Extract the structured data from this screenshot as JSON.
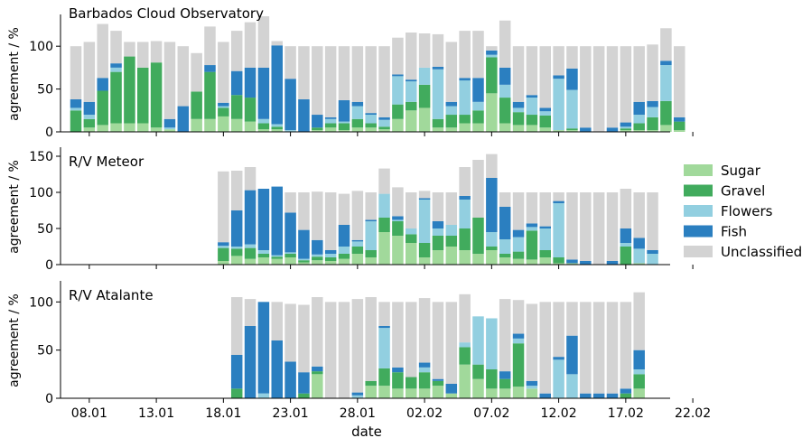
{
  "figure": {
    "xlabel": "date",
    "x_ticks": [
      "08.01",
      "13.01",
      "18.01",
      "23.01",
      "28.01",
      "02.02",
      "07.02",
      "12.02",
      "17.02",
      "22.02"
    ],
    "legend": [
      {
        "label": "Sugar",
        "color": "#a1d99b"
      },
      {
        "label": "Gravel",
        "color": "#41ab5d"
      },
      {
        "label": "Flowers",
        "color": "#92cfe0"
      },
      {
        "label": "Fish",
        "color": "#2b7fc0"
      },
      {
        "label": "Unclassified",
        "color": "#d3d3d3"
      }
    ]
  },
  "chart_data": [
    {
      "type": "bar",
      "stacked": true,
      "title": "Barbados Cloud Observatory",
      "ylabel": "agreement / %",
      "ylim": [
        0,
        135
      ],
      "y_ticks": [
        "0",
        "50",
        "100"
      ],
      "x": [
        "07.01",
        "08.01",
        "09.01",
        "10.01",
        "11.01",
        "12.01",
        "13.01",
        "14.01",
        "15.01",
        "16.01",
        "17.01",
        "18.01",
        "19.01",
        "20.01",
        "21.01",
        "22.01",
        "23.01",
        "24.01",
        "25.01",
        "26.01",
        "27.01",
        "28.01",
        "29.01",
        "30.01",
        "31.01",
        "01.02",
        "02.02",
        "03.02",
        "04.02",
        "05.02",
        "06.02",
        "07.02",
        "08.02",
        "09.02",
        "10.02",
        "11.02",
        "12.02",
        "13.02",
        "14.02",
        "15.02",
        "16.02",
        "17.02",
        "18.02",
        "19.02",
        "20.02",
        "21.02"
      ],
      "series": [
        {
          "name": "Sugar",
          "values": [
            0,
            5,
            8,
            10,
            10,
            10,
            5,
            3,
            0,
            15,
            15,
            18,
            15,
            12,
            3,
            3,
            0,
            0,
            2,
            5,
            2,
            5,
            5,
            3,
            15,
            25,
            28,
            5,
            5,
            10,
            10,
            45,
            10,
            8,
            8,
            5,
            2,
            2,
            0,
            0,
            0,
            2,
            2,
            2,
            8,
            2
          ]
        },
        {
          "name": "Gravel",
          "values": [
            25,
            10,
            40,
            60,
            78,
            65,
            76,
            0,
            0,
            32,
            55,
            10,
            28,
            28,
            7,
            3,
            0,
            0,
            3,
            5,
            8,
            10,
            5,
            3,
            17,
            10,
            27,
            10,
            15,
            10,
            15,
            42,
            30,
            15,
            12,
            14,
            0,
            2,
            0,
            0,
            0,
            2,
            8,
            15,
            28,
            10
          ]
        },
        {
          "name": "Flowers",
          "values": [
            3,
            5,
            0,
            5,
            0,
            0,
            0,
            2,
            0,
            0,
            0,
            2,
            0,
            0,
            5,
            3,
            2,
            0,
            0,
            5,
            2,
            15,
            10,
            8,
            33,
            24,
            20,
            58,
            10,
            40,
            10,
            3,
            15,
            5,
            20,
            5,
            60,
            45,
            0,
            0,
            0,
            2,
            10,
            12,
            42,
            0
          ]
        },
        {
          "name": "Fish",
          "values": [
            10,
            15,
            15,
            5,
            0,
            0,
            0,
            10,
            30,
            0,
            8,
            4,
            28,
            35,
            60,
            92,
            60,
            38,
            15,
            2,
            25,
            5,
            2,
            3,
            2,
            2,
            0,
            3,
            5,
            3,
            28,
            5,
            20,
            7,
            3,
            4,
            4,
            25,
            5,
            0,
            5,
            5,
            15,
            7,
            5,
            5
          ]
        },
        {
          "name": "Unclassified",
          "values": [
            62,
            70,
            63,
            38,
            17,
            30,
            25,
            90,
            70,
            45,
            45,
            71,
            47,
            53,
            60,
            5,
            38,
            62,
            80,
            83,
            63,
            65,
            78,
            83,
            43,
            55,
            40,
            38,
            70,
            55,
            55,
            5,
            55,
            65,
            57,
            72,
            34,
            26,
            95,
            100,
            95,
            89,
            65,
            66,
            38,
            83
          ]
        }
      ]
    },
    {
      "type": "bar",
      "stacked": true,
      "title": "R/V Meteor",
      "ylabel": "agreement / %",
      "ylim": [
        0,
        160
      ],
      "y_ticks": [
        "0",
        "50",
        "100",
        "150"
      ],
      "x": [
        "18.01",
        "19.01",
        "20.01",
        "21.01",
        "22.01",
        "23.01",
        "24.01",
        "25.01",
        "26.01",
        "27.01",
        "28.01",
        "29.01",
        "30.01",
        "31.01",
        "01.02",
        "02.02",
        "03.02",
        "04.02",
        "05.02",
        "06.02",
        "07.02",
        "08.02",
        "09.02",
        "10.02",
        "11.02",
        "12.02",
        "13.02",
        "14.02",
        "15.02",
        "16.02",
        "17.02",
        "18.02",
        "19.02"
      ],
      "series": [
        {
          "name": "Sugar",
          "values": [
            5,
            12,
            8,
            10,
            8,
            10,
            3,
            6,
            5,
            8,
            15,
            10,
            45,
            40,
            30,
            10,
            20,
            25,
            20,
            15,
            20,
            10,
            8,
            7,
            10,
            2,
            2,
            0,
            0,
            0,
            0,
            2,
            0
          ]
        },
        {
          "name": "Gravel",
          "values": [
            18,
            10,
            15,
            5,
            3,
            5,
            3,
            5,
            5,
            7,
            10,
            10,
            20,
            20,
            12,
            20,
            20,
            15,
            30,
            50,
            5,
            5,
            10,
            40,
            10,
            8,
            0,
            0,
            0,
            0,
            25,
            0,
            0
          ]
        },
        {
          "name": "Flowers",
          "values": [
            3,
            3,
            5,
            5,
            2,
            2,
            2,
            3,
            5,
            10,
            7,
            40,
            33,
            2,
            8,
            60,
            10,
            15,
            40,
            0,
            20,
            20,
            20,
            5,
            30,
            75,
            0,
            0,
            0,
            0,
            5,
            20,
            15
          ]
        },
        {
          "name": "Fish",
          "values": [
            5,
            50,
            75,
            85,
            95,
            55,
            40,
            20,
            5,
            30,
            2,
            2,
            0,
            5,
            0,
            2,
            10,
            0,
            5,
            0,
            75,
            45,
            10,
            5,
            3,
            3,
            5,
            5,
            0,
            5,
            20,
            15,
            5
          ]
        },
        {
          "name": "Unclassified",
          "values": [
            98,
            55,
            32,
            0,
            0,
            28,
            52,
            67,
            80,
            43,
            68,
            38,
            35,
            40,
            50,
            10,
            40,
            45,
            40,
            80,
            33,
            20,
            52,
            43,
            47,
            12,
            93,
            95,
            100,
            95,
            55,
            63,
            80
          ]
        }
      ]
    },
    {
      "type": "bar",
      "stacked": true,
      "title": "R/V Atalante",
      "ylabel": "agreement / %",
      "ylim": [
        0,
        120
      ],
      "y_ticks": [
        "0",
        "50",
        "100"
      ],
      "x": [
        "19.01",
        "20.01",
        "21.01",
        "22.01",
        "23.01",
        "24.01",
        "25.01",
        "26.01",
        "27.01",
        "28.01",
        "29.01",
        "30.01",
        "31.01",
        "01.02",
        "02.02",
        "03.02",
        "04.02",
        "05.02",
        "06.02",
        "07.02",
        "08.02",
        "09.02",
        "10.02",
        "11.02",
        "12.02",
        "13.02",
        "14.02",
        "15.02",
        "16.02",
        "17.02",
        "18.02"
      ],
      "series": [
        {
          "name": "Sugar",
          "values": [
            0,
            0,
            0,
            0,
            0,
            0,
            25,
            0,
            0,
            0,
            13,
            13,
            10,
            10,
            10,
            13,
            5,
            35,
            20,
            10,
            10,
            12,
            10,
            0,
            0,
            0,
            0,
            0,
            0,
            0,
            10
          ]
        },
        {
          "name": "Gravel",
          "values": [
            10,
            0,
            0,
            0,
            0,
            5,
            3,
            0,
            0,
            0,
            5,
            18,
            17,
            12,
            17,
            5,
            0,
            18,
            15,
            20,
            10,
            45,
            0,
            0,
            0,
            0,
            0,
            0,
            0,
            5,
            15
          ]
        },
        {
          "name": "Flowers",
          "values": [
            0,
            0,
            5,
            0,
            0,
            0,
            0,
            0,
            0,
            3,
            0,
            42,
            0,
            0,
            5,
            0,
            0,
            5,
            50,
            53,
            0,
            5,
            3,
            0,
            40,
            25,
            0,
            0,
            0,
            0,
            5
          ]
        },
        {
          "name": "Fish",
          "values": [
            35,
            75,
            95,
            60,
            38,
            22,
            5,
            0,
            0,
            3,
            0,
            2,
            5,
            0,
            5,
            2,
            10,
            0,
            0,
            0,
            8,
            5,
            5,
            5,
            3,
            40,
            5,
            5,
            5,
            5,
            20
          ]
        },
        {
          "name": "Unclassified",
          "values": [
            60,
            28,
            0,
            40,
            60,
            70,
            72,
            100,
            100,
            97,
            87,
            25,
            68,
            78,
            67,
            80,
            85,
            50,
            0,
            0,
            75,
            35,
            80,
            95,
            57,
            35,
            95,
            95,
            95,
            90,
            60
          ]
        }
      ]
    }
  ]
}
